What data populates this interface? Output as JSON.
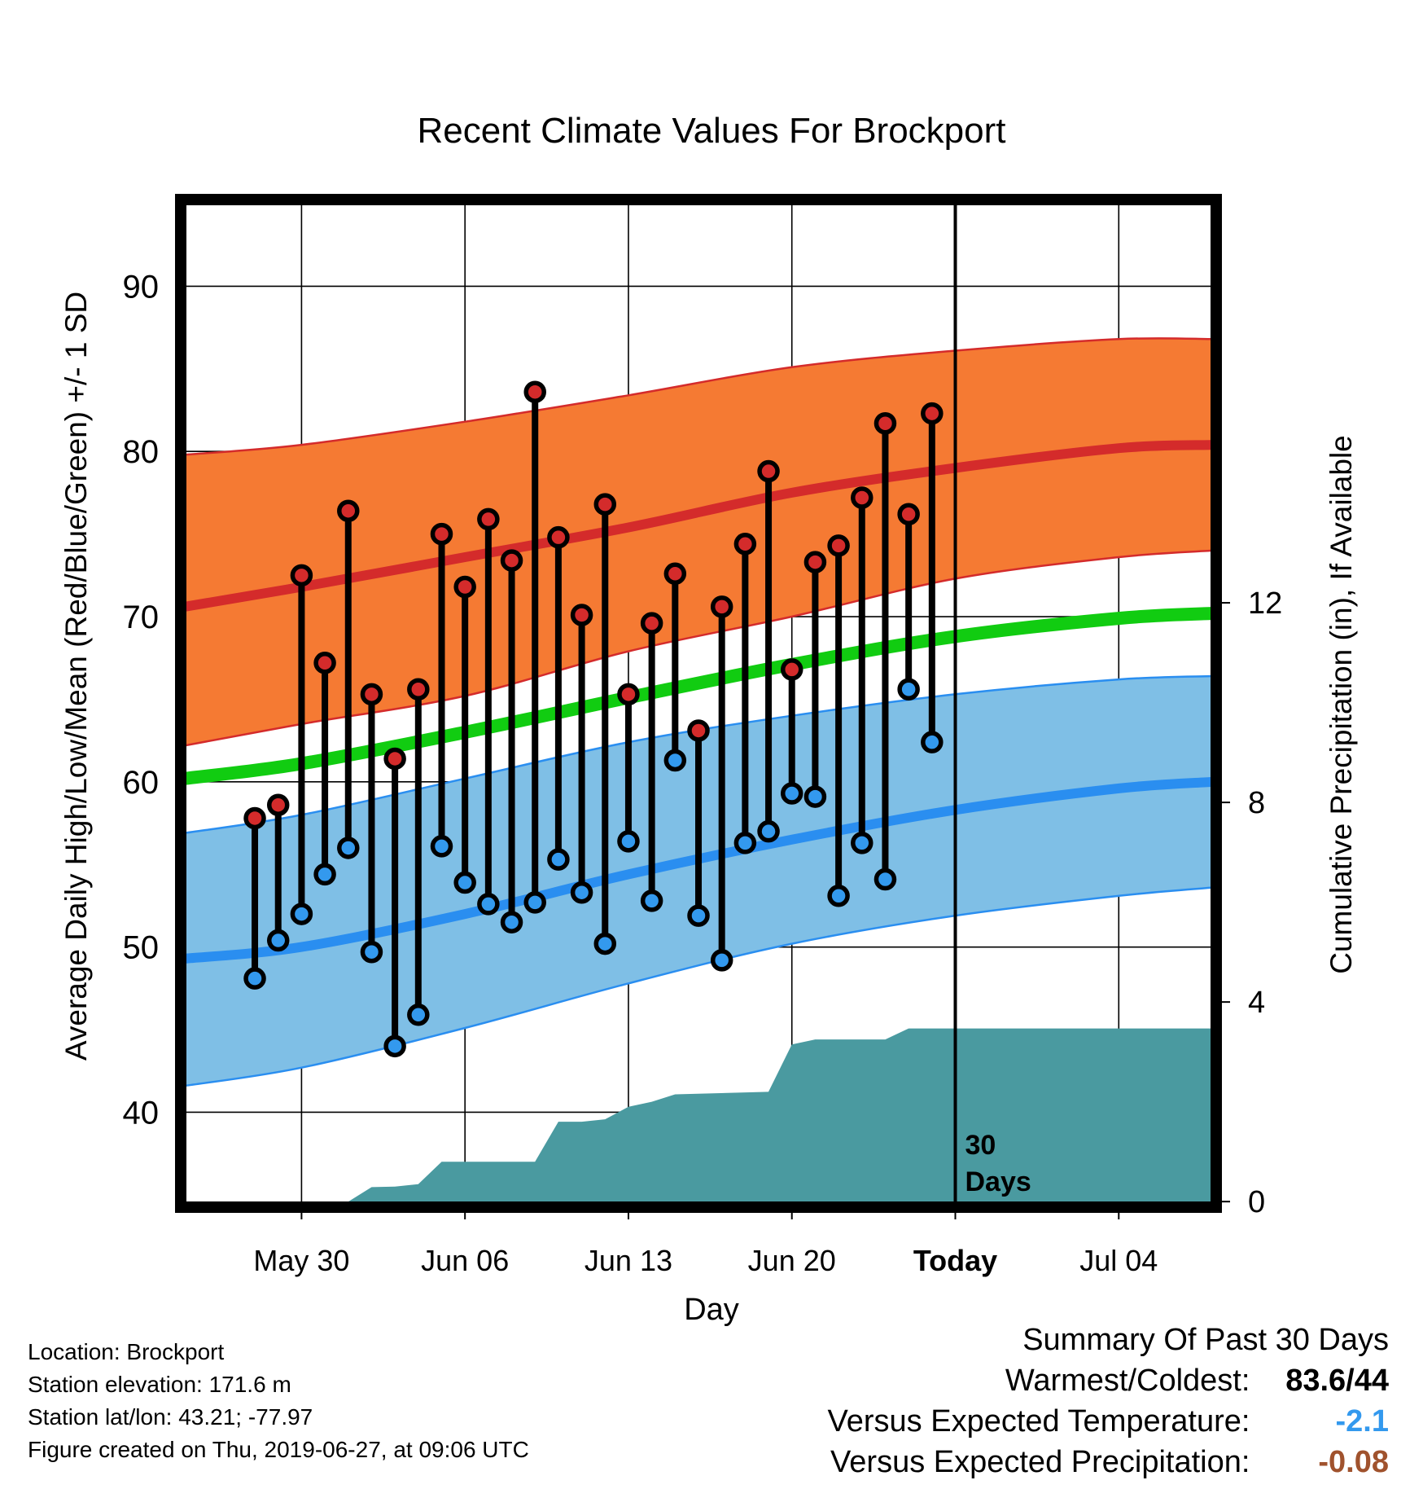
{
  "chart_data": {
    "type": "line",
    "title": "Recent Climate Values For Brockport",
    "xlabel": "Day",
    "ylabel": "Average Daily High/Low/Mean (Red/Blue/Green) +/- 1 SD",
    "y2label": "Cumulative Precipitation (in), If Available",
    "ylim": [
      34.5,
      95
    ],
    "y2lim": [
      -0.03,
      20
    ],
    "xlim": [
      "2019-05-25",
      "2019-07-08"
    ],
    "yticks": [
      40,
      50,
      60,
      70,
      80,
      90
    ],
    "y2ticks": [
      0,
      4,
      8,
      12
    ],
    "xticks": [
      {
        "date": "2019-05-30",
        "label": "May 30"
      },
      {
        "date": "2019-06-06",
        "label": "Jun 06"
      },
      {
        "date": "2019-06-13",
        "label": "Jun 13"
      },
      {
        "date": "2019-06-20",
        "label": "Jun 20"
      },
      {
        "date": "2019-06-27",
        "label": "Today"
      },
      {
        "date": "2019-07-04",
        "label": "Jul 04"
      }
    ],
    "grid": true,
    "today_marker": {
      "date": "2019-06-27",
      "label_line1": "30",
      "label_line2": "Days"
    },
    "daily_observed": {
      "dates": [
        "2019-05-28",
        "2019-05-29",
        "2019-05-30",
        "2019-05-31",
        "2019-06-01",
        "2019-06-02",
        "2019-06-03",
        "2019-06-04",
        "2019-06-05",
        "2019-06-06",
        "2019-06-07",
        "2019-06-08",
        "2019-06-09",
        "2019-06-10",
        "2019-06-11",
        "2019-06-12",
        "2019-06-13",
        "2019-06-14",
        "2019-06-15",
        "2019-06-16",
        "2019-06-17",
        "2019-06-18",
        "2019-06-19",
        "2019-06-20",
        "2019-06-21",
        "2019-06-22",
        "2019-06-23",
        "2019-06-24",
        "2019-06-25",
        "2019-06-26"
      ],
      "high": [
        57.8,
        58.6,
        72.5,
        67.2,
        76.4,
        65.3,
        61.4,
        65.6,
        75.0,
        71.8,
        75.9,
        73.4,
        83.6,
        74.8,
        70.1,
        76.8,
        65.3,
        69.6,
        72.6,
        63.1,
        70.6,
        74.4,
        78.8,
        66.8,
        73.3,
        74.3,
        77.2,
        81.7,
        76.2,
        82.3
      ],
      "low": [
        48.1,
        50.4,
        52.0,
        54.4,
        56.0,
        49.7,
        44.0,
        45.9,
        56.1,
        53.9,
        52.6,
        51.5,
        52.7,
        55.3,
        53.3,
        50.2,
        56.4,
        52.8,
        61.3,
        51.9,
        49.2,
        56.3,
        57.0,
        59.3,
        59.1,
        53.1,
        56.3,
        54.1,
        65.6,
        62.4
      ]
    },
    "normals": {
      "dates": [
        "2019-05-25",
        "2019-05-30",
        "2019-06-06",
        "2019-06-13",
        "2019-06-20",
        "2019-06-27",
        "2019-07-04",
        "2019-07-08"
      ],
      "high_mean": [
        70.6,
        71.8,
        73.6,
        75.4,
        77.5,
        79.0,
        80.2,
        80.4
      ],
      "high_plus_sd": [
        79.8,
        80.4,
        81.8,
        83.4,
        85.1,
        86.1,
        86.8,
        86.8
      ],
      "high_minus_sd": [
        62.2,
        63.5,
        65.2,
        67.9,
        70.0,
        72.3,
        73.6,
        74.0
      ],
      "avg_mean": [
        60.2,
        61.1,
        63.0,
        65.1,
        67.1,
        68.8,
        69.9,
        70.2
      ],
      "low_mean": [
        49.3,
        50.0,
        52.0,
        54.4,
        56.5,
        58.3,
        59.6,
        60.0
      ],
      "low_plus_sd": [
        56.9,
        58.0,
        60.2,
        62.4,
        64.0,
        65.3,
        66.2,
        66.4
      ],
      "low_minus_sd": [
        41.6,
        42.7,
        45.1,
        47.8,
        50.2,
        51.9,
        53.1,
        53.6
      ]
    },
    "cumulative_precip": {
      "dates": [
        "2019-05-25",
        "2019-06-01",
        "2019-06-02",
        "2019-06-03",
        "2019-06-04",
        "2019-06-05",
        "2019-06-09",
        "2019-06-10",
        "2019-06-11",
        "2019-06-12",
        "2019-06-13",
        "2019-06-14",
        "2019-06-15",
        "2019-06-19",
        "2019-06-20",
        "2019-06-21",
        "2019-06-24",
        "2019-06-25",
        "2019-07-08"
      ],
      "values": [
        0.0,
        0.0,
        0.29,
        0.3,
        0.35,
        0.8,
        0.8,
        1.6,
        1.6,
        1.65,
        1.9,
        2.0,
        2.15,
        2.2,
        3.15,
        3.25,
        3.25,
        3.47,
        3.47
      ]
    },
    "colors": {
      "high_band": "#f57a33",
      "high_line": "#d42b2b",
      "low_band": "#7fbfe6",
      "low_line": "#2a8ef0",
      "mean_line": "#11cc11",
      "precip_fill": "#4a9aa0",
      "high_marker": "#d42b2b",
      "low_marker": "#3399ee"
    }
  },
  "footer": {
    "location": "Location: Brockport",
    "elevation": "Station elevation: 171.6 m",
    "latlon": "Station lat/lon: 43.21; -77.97",
    "created": "Figure created on Thu, 2019-06-27, at 09:06 UTC"
  },
  "summary": {
    "heading": "Summary Of Past 30 Days",
    "warmest_label": "Warmest/Coldest:",
    "warmest_value": "83.6/44",
    "temp_label": "Versus Expected Temperature:",
    "temp_value": "-2.1",
    "temp_color": "#3399ee",
    "precip_label": "Versus Expected Precipitation:",
    "precip_value": "-0.08",
    "precip_color": "#a0522d"
  }
}
